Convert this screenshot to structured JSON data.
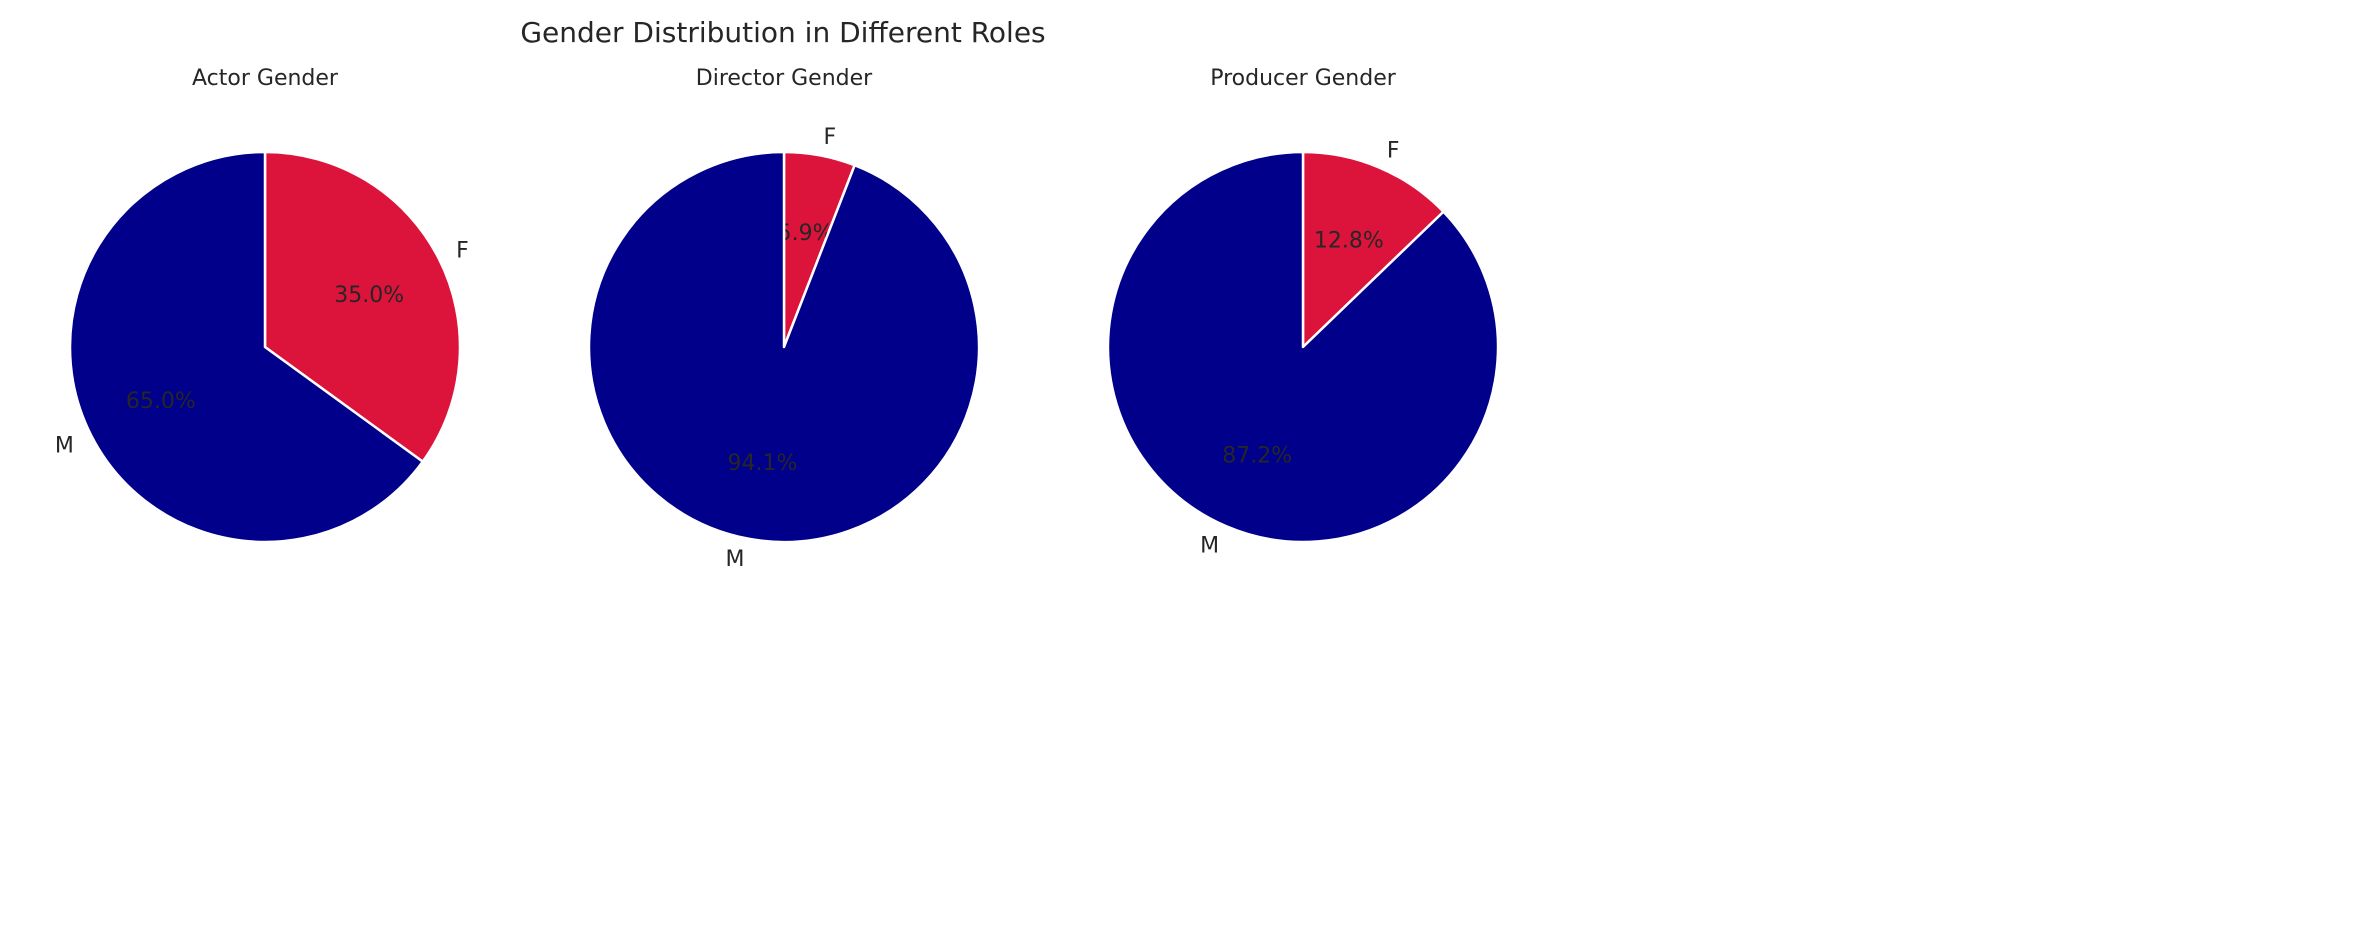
{
  "title": "Gender Distribution in Different Roles",
  "colors": {
    "F": "#DC143C",
    "M": "#00008B"
  },
  "chart_data": [
    {
      "type": "pie",
      "title": "Actor Gender",
      "labels": [
        "F",
        "M"
      ],
      "values": [
        35.0,
        65.0
      ],
      "pct_labels": [
        "35.0%",
        "65.0%"
      ],
      "start_angle_deg": 90,
      "direction": "clockwise"
    },
    {
      "type": "pie",
      "title": "Director Gender",
      "labels": [
        "F",
        "M"
      ],
      "values": [
        5.9,
        94.1
      ],
      "pct_labels": [
        "5.9%",
        "94.1%"
      ],
      "start_angle_deg": 90,
      "direction": "clockwise"
    },
    {
      "type": "pie",
      "title": "Producer Gender",
      "labels": [
        "F",
        "M"
      ],
      "values": [
        12.8,
        87.2
      ],
      "pct_labels": [
        "12.8%",
        "87.2%"
      ],
      "start_angle_deg": 90,
      "direction": "clockwise"
    }
  ]
}
